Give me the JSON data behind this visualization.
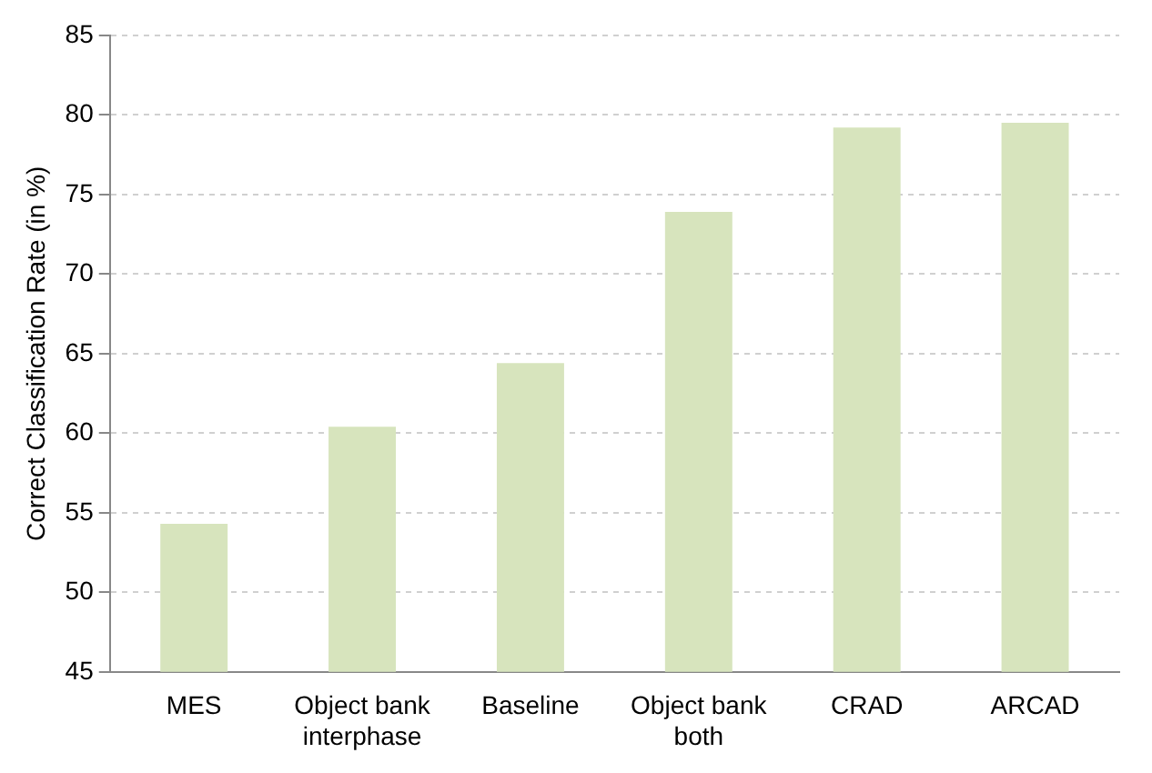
{
  "chart_data": {
    "type": "bar",
    "ylabel": "Correct Classification Rate (in %)",
    "categories": [
      "MES",
      "Object bank interphase",
      "Baseline",
      "Object bank both",
      "CRAD",
      "ARCAD"
    ],
    "values": [
      54.3,
      60.4,
      64.4,
      73.9,
      79.2,
      79.5
    ],
    "color": "#d7e4bd",
    "ylim": [
      45,
      85
    ],
    "yticks": [
      45,
      50,
      55,
      60,
      65,
      70,
      75,
      80,
      85
    ],
    "grid": "y",
    "legend": false
  }
}
